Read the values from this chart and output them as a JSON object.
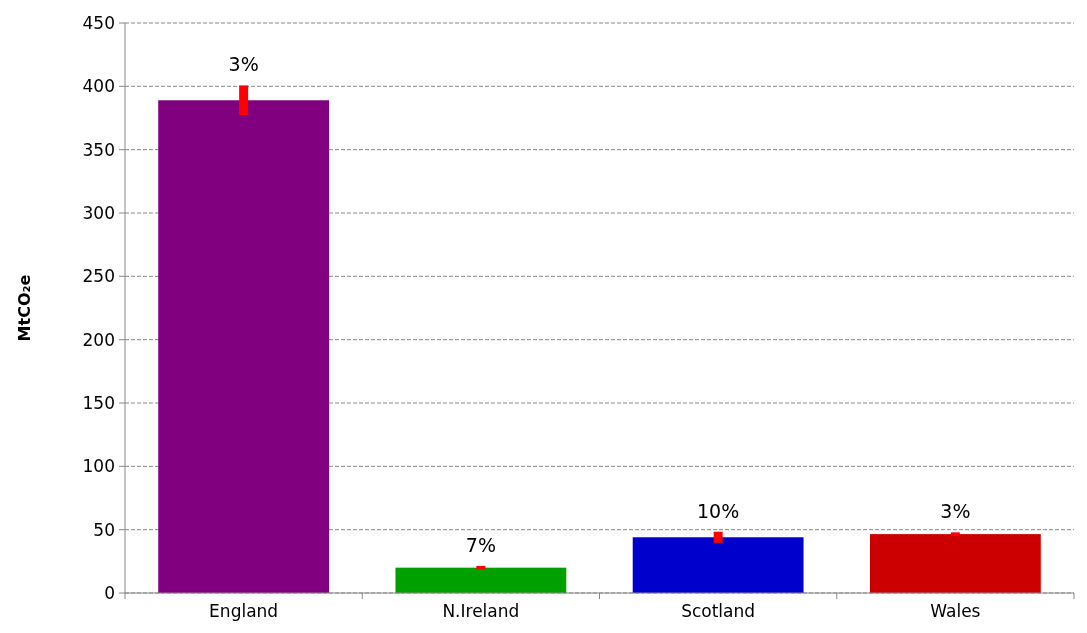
{
  "chart_data": {
    "type": "bar",
    "ylabel": "MtCO₂e",
    "categories": [
      "England",
      "N.Ireland",
      "Scotland",
      "Wales"
    ],
    "values": [
      389,
      20,
      44,
      46.5
    ],
    "colors": [
      "#800080",
      "#00a000",
      "#0000cc",
      "#cc0000"
    ],
    "errors": [
      11.7,
      1.4,
      4.4,
      1.4
    ],
    "ylim": [
      0,
      450
    ],
    "yticks": [
      0,
      50,
      100,
      150,
      200,
      250,
      300,
      350,
      400,
      450
    ],
    "grid": "y",
    "annotations": [
      "3%",
      "7%",
      "10%",
      "3%"
    ]
  }
}
